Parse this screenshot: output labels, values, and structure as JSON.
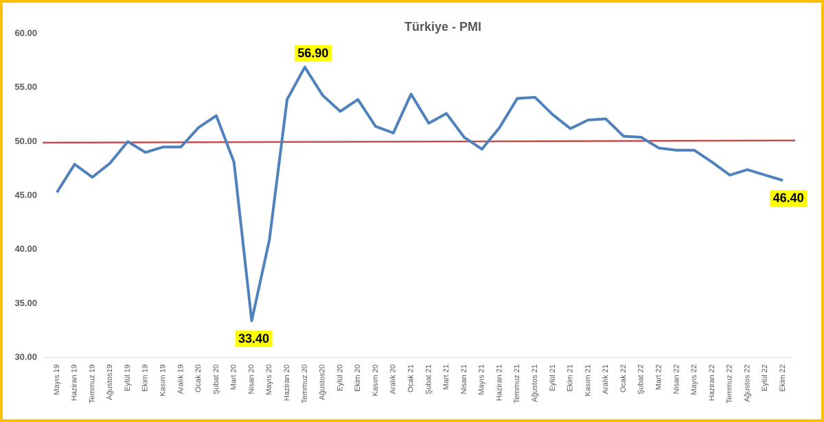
{
  "chart_data": {
    "type": "line",
    "title": "Türkiye - PMI",
    "categories": [
      "Mayıs 19",
      "Haziran 19",
      "Temmuz 19",
      "Ağustos19",
      "Eylül 19",
      "Ekim 19",
      "Kasım 19",
      "Aralık 19",
      "Ocak 20",
      "Şubat 20",
      "Mart 20",
      "Nisan 20",
      "Mayıs 20",
      "Haziran 20",
      "Temmuz 20",
      "Ağustos20",
      "Eylül 20",
      "Ekim 20",
      "Kasım 20",
      "Aralık 20",
      "Ocak 21",
      "Şubat 21",
      "Mart 21",
      "Nisan 21",
      "Mayıs 21",
      "Haziran 21",
      "Temmuz 21",
      "Ağustos 21",
      "Eylül 21",
      "Ekim 21",
      "Kasım 21",
      "Aralık 21",
      "Ocak 22",
      "Şubat 22",
      "Mart 22",
      "Nisan 22",
      "Mayıs 22",
      "Haziran 22",
      "Temmuz 22",
      "Ağustos 22",
      "Eylül 22",
      "Ekim 22"
    ],
    "series": [
      {
        "color": "#4f81bd",
        "values": [
          45.3,
          47.9,
          46.7,
          48.0,
          50.0,
          49.0,
          49.5,
          49.5,
          51.3,
          52.4,
          48.1,
          33.4,
          40.9,
          53.9,
          56.9,
          54.3,
          52.8,
          53.9,
          51.4,
          50.8,
          54.4,
          51.7,
          52.6,
          50.4,
          49.3,
          51.3,
          54.0,
          54.1,
          52.5,
          51.2,
          52.0,
          52.1,
          50.5,
          50.4,
          49.4,
          49.2,
          49.2,
          48.1,
          46.9,
          47.4,
          46.9,
          46.4
        ],
        "value_labels": [
          null,
          null,
          null,
          null,
          null,
          null,
          null,
          null,
          null,
          null,
          null,
          "33.40",
          null,
          null,
          "56.90",
          null,
          null,
          null,
          null,
          null,
          null,
          null,
          null,
          null,
          null,
          null,
          null,
          null,
          null,
          null,
          null,
          null,
          null,
          null,
          null,
          null,
          null,
          null,
          null,
          null,
          null,
          "46.40"
        ]
      }
    ],
    "reference_line": {
      "values": [
        49.9,
        50.1
      ],
      "color": "#c0504d"
    },
    "ylim": [
      30,
      60
    ],
    "yticks": [
      {
        "value": 30,
        "label": "30.00"
      },
      {
        "value": 35,
        "label": "35.00"
      },
      {
        "value": 40,
        "label": "40.00"
      },
      {
        "value": 45,
        "label": "45.00"
      },
      {
        "value": 50,
        "label": "50.00"
      },
      {
        "value": 55,
        "label": "55.00"
      },
      {
        "value": 60,
        "label": "60.00"
      }
    ],
    "grid": false,
    "label_highlight": "#ffff00"
  }
}
